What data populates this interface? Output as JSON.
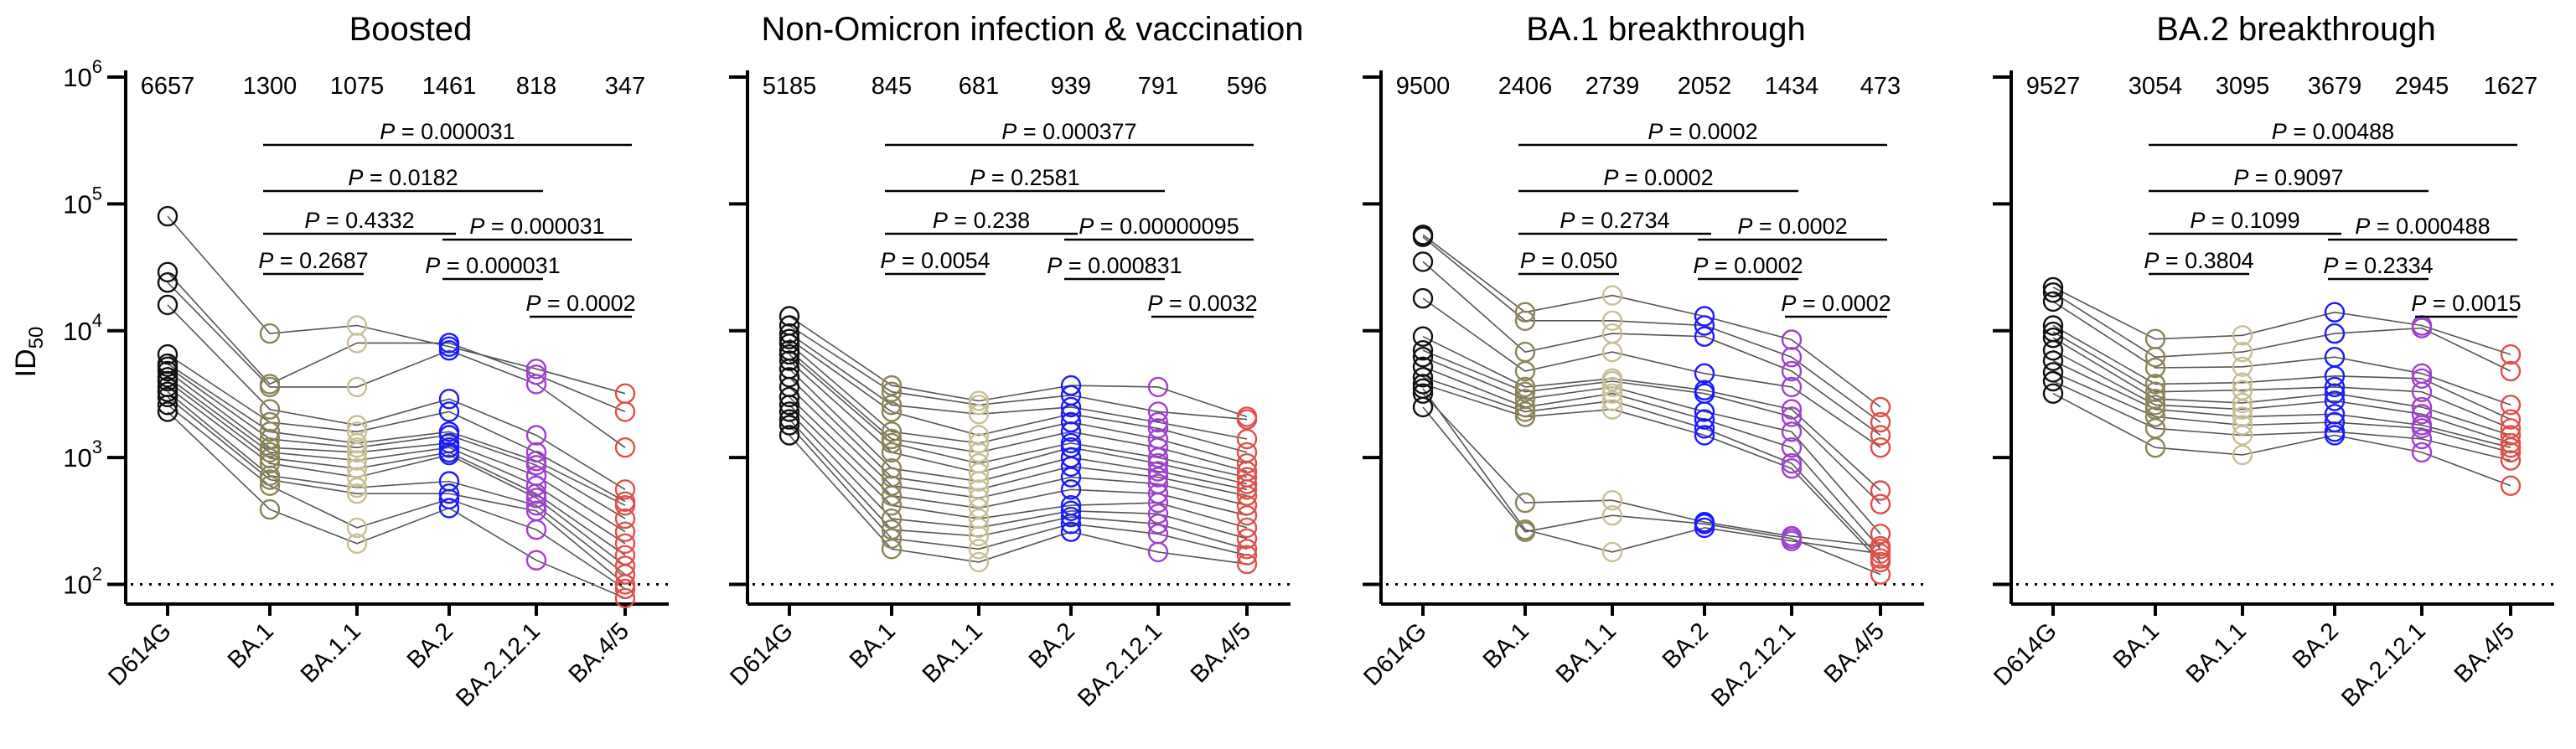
{
  "y_axis": {
    "label": "ID",
    "label_sub": "50",
    "ticks": [
      {
        "base": "10",
        "exp": "2",
        "value": 100
      },
      {
        "base": "10",
        "exp": "3",
        "value": 1000
      },
      {
        "base": "10",
        "exp": "4",
        "value": 10000
      },
      {
        "base": "10",
        "exp": "5",
        "value": 100000
      },
      {
        "base": "10",
        "exp": "6",
        "value": 1000000
      }
    ]
  },
  "categories": [
    "D614G",
    "BA.1",
    "BA.1.1",
    "BA.2",
    "BA.2.12.1",
    "BA.4/5"
  ],
  "colors": {
    "D614G": "#111111",
    "BA.1": "#8b8458",
    "BA.1.1": "#c8bf95",
    "BA.2": "#1a1aff",
    "BA.2.12.1": "#a040d0",
    "BA.4/5": "#e0504a",
    "lines": "#555555",
    "axis": "#000000"
  },
  "chart_data": [
    {
      "type": "scatter",
      "title": "Boosted",
      "y_scale": "log",
      "ylim": [
        70,
        1000000
      ],
      "limit_of_detection": 100,
      "geometric_means": [
        "6657",
        "1300",
        "1075",
        "1461",
        "818",
        "347"
      ],
      "comparisons": [
        {
          "label": "0.000031",
          "from": "BA.1",
          "to": "BA.4/5"
        },
        {
          "label": "0.0182",
          "from": "BA.1",
          "to": "BA.2.12.1"
        },
        {
          "label": "0.4332",
          "from": "BA.1",
          "to": "BA.2"
        },
        {
          "label": "0.000031",
          "from": "BA.2",
          "to": "BA.4/5"
        },
        {
          "label": "0.2687",
          "from": "BA.1",
          "to": "BA.1.1"
        },
        {
          "label": "0.000031",
          "from": "BA.2",
          "to": "BA.2.12.1"
        },
        {
          "label": "0.0002",
          "from": "BA.2.12.1",
          "to": "BA.4/5"
        }
      ],
      "subjects": [
        [
          80000,
          9500,
          11000,
          7500,
          5000,
          3200
        ],
        [
          29000,
          3800,
          8000,
          8000,
          4500,
          2300
        ],
        [
          24000,
          3600,
          3600,
          7000,
          3800,
          1200
        ],
        [
          16000,
          2400,
          1800,
          2900,
          1500,
          560
        ],
        [
          6500,
          1900,
          1600,
          2300,
          1100,
          450
        ],
        [
          5500,
          1600,
          1300,
          1600,
          940,
          420
        ],
        [
          5200,
          1400,
          1200,
          1500,
          870,
          330
        ],
        [
          4800,
          1200,
          1100,
          1300,
          720,
          260
        ],
        [
          4300,
          1100,
          950,
          1200,
          600,
          210
        ],
        [
          4000,
          990,
          820,
          1100,
          520,
          170
        ],
        [
          3600,
          900,
          700,
          1050,
          480,
          140
        ],
        [
          3300,
          720,
          580,
          650,
          420,
          120
        ],
        [
          3000,
          670,
          520,
          520,
          380,
          100
        ],
        [
          2600,
          600,
          280,
          470,
          270,
          92
        ],
        [
          2300,
          390,
          210,
          400,
          155,
          78
        ]
      ]
    },
    {
      "type": "scatter",
      "title": "Non-Omicron infection & vaccination",
      "y_scale": "log",
      "ylim": [
        70,
        1000000
      ],
      "limit_of_detection": 100,
      "geometric_means": [
        "5185",
        "845",
        "681",
        "939",
        "791",
        "596"
      ],
      "comparisons": [
        {
          "label": "0.000377",
          "from": "BA.1",
          "to": "BA.4/5"
        },
        {
          "label": "0.2581",
          "from": "BA.1",
          "to": "BA.2.12.1"
        },
        {
          "label": "0.238",
          "from": "BA.1",
          "to": "BA.2"
        },
        {
          "label": "0.00000095",
          "from": "BA.2",
          "to": "BA.4/5"
        },
        {
          "label": "0.0054",
          "from": "BA.1",
          "to": "BA.1.1"
        },
        {
          "label": "0.000831",
          "from": "BA.2",
          "to": "BA.2.12.1"
        },
        {
          "label": "0.0032",
          "from": "BA.2.12.1",
          "to": "BA.4/5"
        }
      ],
      "subjects": [
        [
          13000,
          3700,
          2800,
          3700,
          3600,
          2100
        ],
        [
          11000,
          3300,
          2600,
          3100,
          2300,
          2000
        ],
        [
          9500,
          2600,
          2200,
          2500,
          1900,
          1400
        ],
        [
          8600,
          2300,
          1500,
          2200,
          1700,
          1100
        ],
        [
          7900,
          1600,
          1300,
          1900,
          1400,
          900
        ],
        [
          7000,
          1400,
          1100,
          1600,
          1200,
          780
        ],
        [
          6500,
          1300,
          900,
          1300,
          1000,
          700
        ],
        [
          5800,
          1100,
          760,
          1200,
          900,
          620
        ],
        [
          5000,
          820,
          650,
          1000,
          780,
          560
        ],
        [
          4300,
          700,
          560,
          850,
          700,
          500
        ],
        [
          3600,
          600,
          480,
          700,
          620,
          420
        ],
        [
          3000,
          500,
          400,
          560,
          520,
          350
        ],
        [
          2600,
          420,
          330,
          420,
          440,
          280
        ],
        [
          2300,
          330,
          280,
          380,
          360,
          230
        ],
        [
          2000,
          270,
          240,
          340,
          300,
          190
        ],
        [
          1800,
          230,
          190,
          300,
          250,
          170
        ],
        [
          1500,
          190,
          150,
          260,
          180,
          145
        ]
      ]
    },
    {
      "type": "scatter",
      "title": "BA.1 breakthrough",
      "y_scale": "log",
      "ylim": [
        70,
        1000000
      ],
      "limit_of_detection": 100,
      "geometric_means": [
        "9500",
        "2406",
        "2739",
        "2052",
        "1434",
        "473"
      ],
      "comparisons": [
        {
          "label": "0.0002",
          "from": "BA.1",
          "to": "BA.4/5"
        },
        {
          "label": "0.0002",
          "from": "BA.1",
          "to": "BA.2.12.1"
        },
        {
          "label": "0.2734",
          "from": "BA.1",
          "to": "BA.2"
        },
        {
          "label": "0.0002",
          "from": "BA.2",
          "to": "BA.4/5"
        },
        {
          "label": "0.050",
          "from": "BA.1",
          "to": "BA.1.1"
        },
        {
          "label": "0.0002",
          "from": "BA.2",
          "to": "BA.2.12.1"
        },
        {
          "label": "0.0002",
          "from": "BA.2.12.1",
          "to": "BA.4/5"
        }
      ],
      "subjects": [
        [
          57000,
          14000,
          19000,
          13000,
          8500,
          2500
        ],
        [
          55000,
          12000,
          12000,
          11000,
          6200,
          1900
        ],
        [
          35000,
          6800,
          9500,
          9000,
          4800,
          1500
        ],
        [
          18000,
          4800,
          6800,
          4600,
          3600,
          1200
        ],
        [
          9000,
          3600,
          4200,
          3400,
          2400,
          550
        ],
        [
          7000,
          3300,
          4000,
          3200,
          2100,
          430
        ],
        [
          6200,
          2900,
          3600,
          2300,
          1600,
          250
        ],
        [
          5200,
          2500,
          3200,
          2000,
          1200,
          190
        ],
        [
          4300,
          2300,
          2800,
          1700,
          900,
          160
        ],
        [
          3800,
          2100,
          2400,
          1500,
          820,
          150
        ],
        [
          3200,
          440,
          460,
          310,
          240,
          200
        ],
        [
          2500,
          260,
          350,
          300,
          230,
          120
        ],
        [
          3500,
          270,
          180,
          280,
          220,
          175
        ]
      ]
    },
    {
      "type": "scatter",
      "title": "BA.2 breakthrough",
      "y_scale": "log",
      "ylim": [
        70,
        1000000
      ],
      "limit_of_detection": 100,
      "geometric_means": [
        "9527",
        "3054",
        "3095",
        "3679",
        "2945",
        "1627"
      ],
      "comparisons": [
        {
          "label": "0.00488",
          "from": "BA.1",
          "to": "BA.4/5"
        },
        {
          "label": "0.9097",
          "from": "BA.1",
          "to": "BA.2.12.1"
        },
        {
          "label": "0.1099",
          "from": "BA.1",
          "to": "BA.2"
        },
        {
          "label": "0.000488",
          "from": "BA.2",
          "to": "BA.4/5"
        },
        {
          "label": "0.3804",
          "from": "BA.1",
          "to": "BA.1.1"
        },
        {
          "label": "0.2334",
          "from": "BA.2",
          "to": "BA.2.12.1"
        },
        {
          "label": "0.0015",
          "from": "BA.2.12.1",
          "to": "BA.4/5"
        }
      ],
      "subjects": [
        [
          22000,
          8600,
          9200,
          14000,
          11000,
          6500
        ],
        [
          20000,
          6200,
          6800,
          9500,
          10500,
          4800
        ],
        [
          17000,
          5100,
          5200,
          6200,
          4600,
          2600
        ],
        [
          11000,
          3800,
          3900,
          4400,
          4200,
          2000
        ],
        [
          9800,
          3300,
          3400,
          3600,
          3300,
          1700
        ],
        [
          8800,
          2900,
          2700,
          3200,
          2500,
          1500
        ],
        [
          7000,
          2600,
          2400,
          2800,
          2200,
          1300
        ],
        [
          5800,
          2400,
          2100,
          2200,
          1800,
          1200
        ],
        [
          4700,
          2100,
          1800,
          1900,
          1700,
          1100
        ],
        [
          4000,
          1700,
          1500,
          1600,
          1400,
          950
        ],
        [
          3200,
          1200,
          1050,
          1500,
          1100,
          600
        ]
      ]
    }
  ]
}
